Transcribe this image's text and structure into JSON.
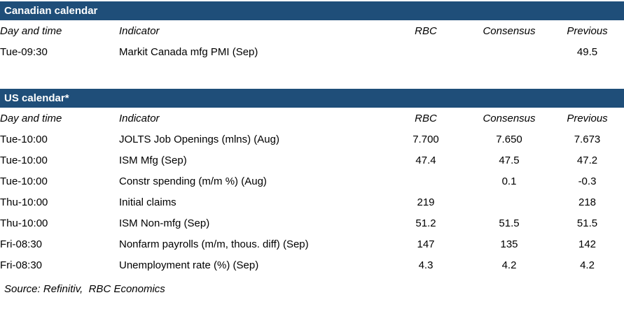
{
  "colors": {
    "header_bar": "#1f4e79",
    "header_text": "#ffffff",
    "body_text": "#000000",
    "background": "#ffffff"
  },
  "columns": {
    "day": "Day and time",
    "indicator": "Indicator",
    "rbc": "RBC",
    "consensus": "Consensus",
    "previous": "Previous"
  },
  "sections": [
    {
      "id": "canadian-calendar",
      "title": "Canadian calendar",
      "rows": [
        {
          "day": "Tue-09:30",
          "indicator": "Markit Canada mfg PMI (Sep)",
          "rbc": "",
          "consensus": "",
          "previous": "49.5"
        }
      ]
    },
    {
      "id": "us-calendar",
      "title": "US calendar*",
      "rows": [
        {
          "day": "Tue-10:00",
          "indicator": "JOLTS Job Openings (mlns) (Aug)",
          "rbc": "7.700",
          "consensus": "7.650",
          "previous": "7.673"
        },
        {
          "day": "Tue-10:00",
          "indicator": "ISM Mfg (Sep)",
          "rbc": "47.4",
          "consensus": "47.5",
          "previous": "47.2"
        },
        {
          "day": "Tue-10:00",
          "indicator": "Constr spending (m/m %) (Aug)",
          "rbc": "",
          "consensus": "0.1",
          "previous": "-0.3"
        },
        {
          "day": "Thu-10:00",
          "indicator": "Initial claims",
          "rbc": "219",
          "consensus": "",
          "previous": "218"
        },
        {
          "day": "Thu-10:00",
          "indicator": "ISM Non-mfg (Sep)",
          "rbc": "51.2",
          "consensus": "51.5",
          "previous": "51.5"
        },
        {
          "day": "Fri-08:30",
          "indicator": "Nonfarm payrolls (m/m, thous. diff) (Sep)",
          "rbc": "147",
          "consensus": "135",
          "previous": "142"
        },
        {
          "day": "Fri-08:30",
          "indicator": "Unemployment rate (%) (Sep)",
          "rbc": "4.3",
          "consensus": "4.2",
          "previous": "4.2"
        }
      ]
    }
  ],
  "source": "Source: Refinitiv,  RBC Economics"
}
